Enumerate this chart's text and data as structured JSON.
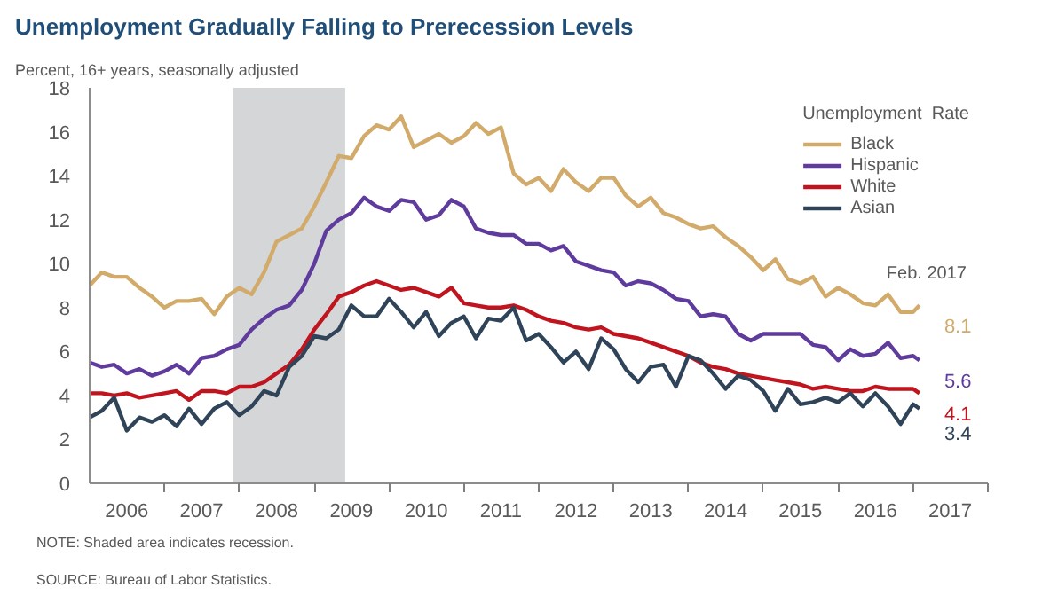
{
  "chart_data": {
    "type": "line",
    "title": "Unemployment Gradually Falling to Prerecession Levels",
    "subtitle": "Percent, 16+ years, seasonally adjusted",
    "x": [
      "2006-01",
      "2006-03",
      "2006-05",
      "2006-07",
      "2006-09",
      "2006-11",
      "2007-01",
      "2007-03",
      "2007-05",
      "2007-07",
      "2007-09",
      "2007-11",
      "2008-01",
      "2008-03",
      "2008-05",
      "2008-07",
      "2008-09",
      "2008-11",
      "2009-01",
      "2009-03",
      "2009-05",
      "2009-07",
      "2009-09",
      "2009-11",
      "2010-01",
      "2010-03",
      "2010-05",
      "2010-07",
      "2010-09",
      "2010-11",
      "2011-01",
      "2011-03",
      "2011-05",
      "2011-07",
      "2011-09",
      "2011-11",
      "2012-01",
      "2012-03",
      "2012-05",
      "2012-07",
      "2012-09",
      "2012-11",
      "2013-01",
      "2013-03",
      "2013-05",
      "2013-07",
      "2013-09",
      "2013-11",
      "2014-01",
      "2014-03",
      "2014-05",
      "2014-07",
      "2014-09",
      "2014-11",
      "2015-01",
      "2015-03",
      "2015-05",
      "2015-07",
      "2015-09",
      "2015-11",
      "2016-01",
      "2016-03",
      "2016-05",
      "2016-07",
      "2016-09",
      "2016-11",
      "2017-01",
      "2017-02"
    ],
    "series": [
      {
        "name": "Black",
        "color": "#d2ab6b",
        "values": [
          9.0,
          9.6,
          9.4,
          9.4,
          8.9,
          8.5,
          8.0,
          8.3,
          8.3,
          8.4,
          7.7,
          8.5,
          8.9,
          8.6,
          9.6,
          11.0,
          11.3,
          11.6,
          12.6,
          13.7,
          14.9,
          14.8,
          15.8,
          16.3,
          16.1,
          16.7,
          15.3,
          15.6,
          15.9,
          15.5,
          15.8,
          16.4,
          15.9,
          16.2,
          14.1,
          13.6,
          13.9,
          13.3,
          14.3,
          13.7,
          13.3,
          13.9,
          13.9,
          13.1,
          12.6,
          13.0,
          12.3,
          12.1,
          11.8,
          11.6,
          11.7,
          11.2,
          10.8,
          10.3,
          9.7,
          10.2,
          9.3,
          9.1,
          9.4,
          8.5,
          8.9,
          8.6,
          8.2,
          8.1,
          8.6,
          7.8,
          7.8,
          8.1
        ],
        "value_labels": [
          null,
          null,
          null,
          null,
          null,
          null,
          null,
          null,
          null,
          null,
          null,
          null,
          null,
          null,
          null,
          null,
          null,
          null,
          null,
          null,
          null,
          null,
          null,
          null,
          null,
          null,
          null,
          null,
          null,
          null,
          null,
          null,
          null,
          null,
          null,
          null,
          null,
          null,
          null,
          null,
          null,
          null,
          null,
          null,
          null,
          null,
          null,
          null,
          null,
          null,
          null,
          null,
          null,
          null,
          null,
          null,
          null,
          null,
          null,
          null,
          null,
          null,
          null,
          null,
          null,
          null,
          null,
          "8.1"
        ]
      },
      {
        "name": "Hispanic",
        "color": "#5f3b9e",
        "values": [
          5.5,
          5.3,
          5.4,
          5.0,
          5.2,
          4.9,
          5.1,
          5.4,
          5.0,
          5.7,
          5.8,
          6.1,
          6.3,
          7.0,
          7.5,
          7.9,
          8.1,
          8.8,
          10.0,
          11.5,
          12.0,
          12.3,
          13.0,
          12.6,
          12.4,
          12.9,
          12.8,
          12.0,
          12.2,
          12.9,
          12.6,
          11.6,
          11.4,
          11.3,
          11.3,
          10.9,
          10.9,
          10.6,
          10.8,
          10.1,
          9.9,
          9.7,
          9.6,
          9.0,
          9.2,
          9.1,
          8.8,
          8.4,
          8.3,
          7.6,
          7.7,
          7.6,
          6.8,
          6.5,
          6.8,
          6.8,
          6.8,
          6.8,
          6.3,
          6.2,
          5.6,
          6.1,
          5.8,
          5.9,
          6.4,
          5.7,
          5.8,
          5.6
        ],
        "value_labels": [
          null,
          null,
          null,
          null,
          null,
          null,
          null,
          null,
          null,
          null,
          null,
          null,
          null,
          null,
          null,
          null,
          null,
          null,
          null,
          null,
          null,
          null,
          null,
          null,
          null,
          null,
          null,
          null,
          null,
          null,
          null,
          null,
          null,
          null,
          null,
          null,
          null,
          null,
          null,
          null,
          null,
          null,
          null,
          null,
          null,
          null,
          null,
          null,
          null,
          null,
          null,
          null,
          null,
          null,
          null,
          null,
          null,
          null,
          null,
          null,
          null,
          null,
          null,
          null,
          null,
          null,
          null,
          "5.6"
        ]
      },
      {
        "name": "White",
        "color": "#c0141e",
        "values": [
          4.1,
          4.1,
          4.0,
          4.1,
          3.9,
          4.0,
          4.1,
          4.2,
          3.8,
          4.2,
          4.2,
          4.1,
          4.4,
          4.4,
          4.6,
          5.0,
          5.4,
          6.1,
          7.0,
          7.7,
          8.5,
          8.7,
          9.0,
          9.2,
          9.0,
          8.8,
          8.9,
          8.7,
          8.5,
          8.9,
          8.2,
          8.1,
          8.0,
          8.0,
          8.1,
          7.9,
          7.6,
          7.4,
          7.3,
          7.1,
          7.0,
          7.1,
          6.8,
          6.7,
          6.6,
          6.4,
          6.2,
          6.0,
          5.8,
          5.5,
          5.3,
          5.2,
          5.0,
          4.9,
          4.8,
          4.7,
          4.6,
          4.5,
          4.3,
          4.4,
          4.3,
          4.2,
          4.2,
          4.4,
          4.3,
          4.3,
          4.3,
          4.1
        ],
        "value_labels": [
          null,
          null,
          null,
          null,
          null,
          null,
          null,
          null,
          null,
          null,
          null,
          null,
          null,
          null,
          null,
          null,
          null,
          null,
          null,
          null,
          null,
          null,
          null,
          null,
          null,
          null,
          null,
          null,
          null,
          null,
          null,
          null,
          null,
          null,
          null,
          null,
          null,
          null,
          null,
          null,
          null,
          null,
          null,
          null,
          null,
          null,
          null,
          null,
          null,
          null,
          null,
          null,
          null,
          null,
          null,
          null,
          null,
          null,
          null,
          null,
          null,
          null,
          null,
          null,
          null,
          null,
          null,
          "4.1"
        ]
      },
      {
        "name": "Asian",
        "color": "#2f4459",
        "values": [
          3.0,
          3.3,
          3.9,
          2.4,
          3.0,
          2.8,
          3.1,
          2.6,
          3.4,
          2.7,
          3.4,
          3.7,
          3.1,
          3.5,
          4.2,
          4.0,
          5.3,
          5.8,
          6.7,
          6.6,
          7.0,
          8.1,
          7.6,
          7.6,
          8.4,
          7.8,
          7.1,
          7.8,
          6.7,
          7.3,
          7.6,
          6.6,
          7.5,
          7.4,
          8.0,
          6.5,
          6.8,
          6.2,
          5.5,
          6.0,
          5.2,
          6.6,
          6.1,
          5.2,
          4.6,
          5.3,
          5.4,
          4.4,
          5.8,
          5.6,
          5.0,
          4.3,
          4.9,
          4.7,
          4.2,
          3.3,
          4.3,
          3.6,
          3.7,
          3.9,
          3.7,
          4.1,
          3.5,
          4.1,
          3.5,
          2.7,
          3.6,
          3.4
        ],
        "value_labels": [
          null,
          null,
          null,
          null,
          null,
          null,
          null,
          null,
          null,
          null,
          null,
          null,
          null,
          null,
          null,
          null,
          null,
          null,
          null,
          null,
          null,
          null,
          null,
          null,
          null,
          null,
          null,
          null,
          null,
          null,
          null,
          null,
          null,
          null,
          null,
          null,
          null,
          null,
          null,
          null,
          null,
          null,
          null,
          null,
          null,
          null,
          null,
          null,
          null,
          null,
          null,
          null,
          null,
          null,
          null,
          null,
          null,
          null,
          null,
          null,
          null,
          null,
          null,
          null,
          null,
          null,
          null,
          "3.4"
        ]
      }
    ],
    "xlim": [
      "2006-01",
      "2018-01"
    ],
    "xticks": [
      {
        "value": "2006-07",
        "label": "2006"
      },
      {
        "value": "2007-07",
        "label": "2007"
      },
      {
        "value": "2008-07",
        "label": "2008"
      },
      {
        "value": "2009-07",
        "label": "2009"
      },
      {
        "value": "2010-07",
        "label": "2010"
      },
      {
        "value": "2011-07",
        "label": "2011"
      },
      {
        "value": "2012-07",
        "label": "2012"
      },
      {
        "value": "2013-07",
        "label": "2013"
      },
      {
        "value": "2014-07",
        "label": "2014"
      },
      {
        "value": "2015-07",
        "label": "2015"
      },
      {
        "value": "2016-07",
        "label": "2016"
      },
      {
        "value": "2017-07",
        "label": "2017"
      },
      {
        "value": "2007-01",
        "label": null
      },
      {
        "value": "2008-01",
        "label": null
      },
      {
        "value": "2009-01",
        "label": null
      },
      {
        "value": "2010-01",
        "label": null
      },
      {
        "value": "2011-01",
        "label": null
      },
      {
        "value": "2012-01",
        "label": null
      },
      {
        "value": "2013-01",
        "label": null
      },
      {
        "value": "2014-01",
        "label": null
      },
      {
        "value": "2015-01",
        "label": null
      },
      {
        "value": "2016-01",
        "label": null
      },
      {
        "value": "2017-01",
        "label": null
      },
      {
        "value": "2018-01",
        "label": null
      }
    ],
    "ylim": [
      0,
      18
    ],
    "yticks": [
      0,
      2,
      4,
      6,
      8,
      10,
      12,
      14,
      16,
      18
    ],
    "bands": [
      {
        "axis": "x",
        "from": "2007-12",
        "to": "2009-06",
        "color": "#d5d6d8"
      }
    ],
    "legend": "top right",
    "legend_title": "Unemployment  Rate",
    "grid": false,
    "marker": "none",
    "line_style": "solid",
    "annotations": [
      "Feb. 2017",
      "NOTE: Shaded area indicates recession.",
      "SOURCE: Bureau of Labor Statistics."
    ]
  }
}
